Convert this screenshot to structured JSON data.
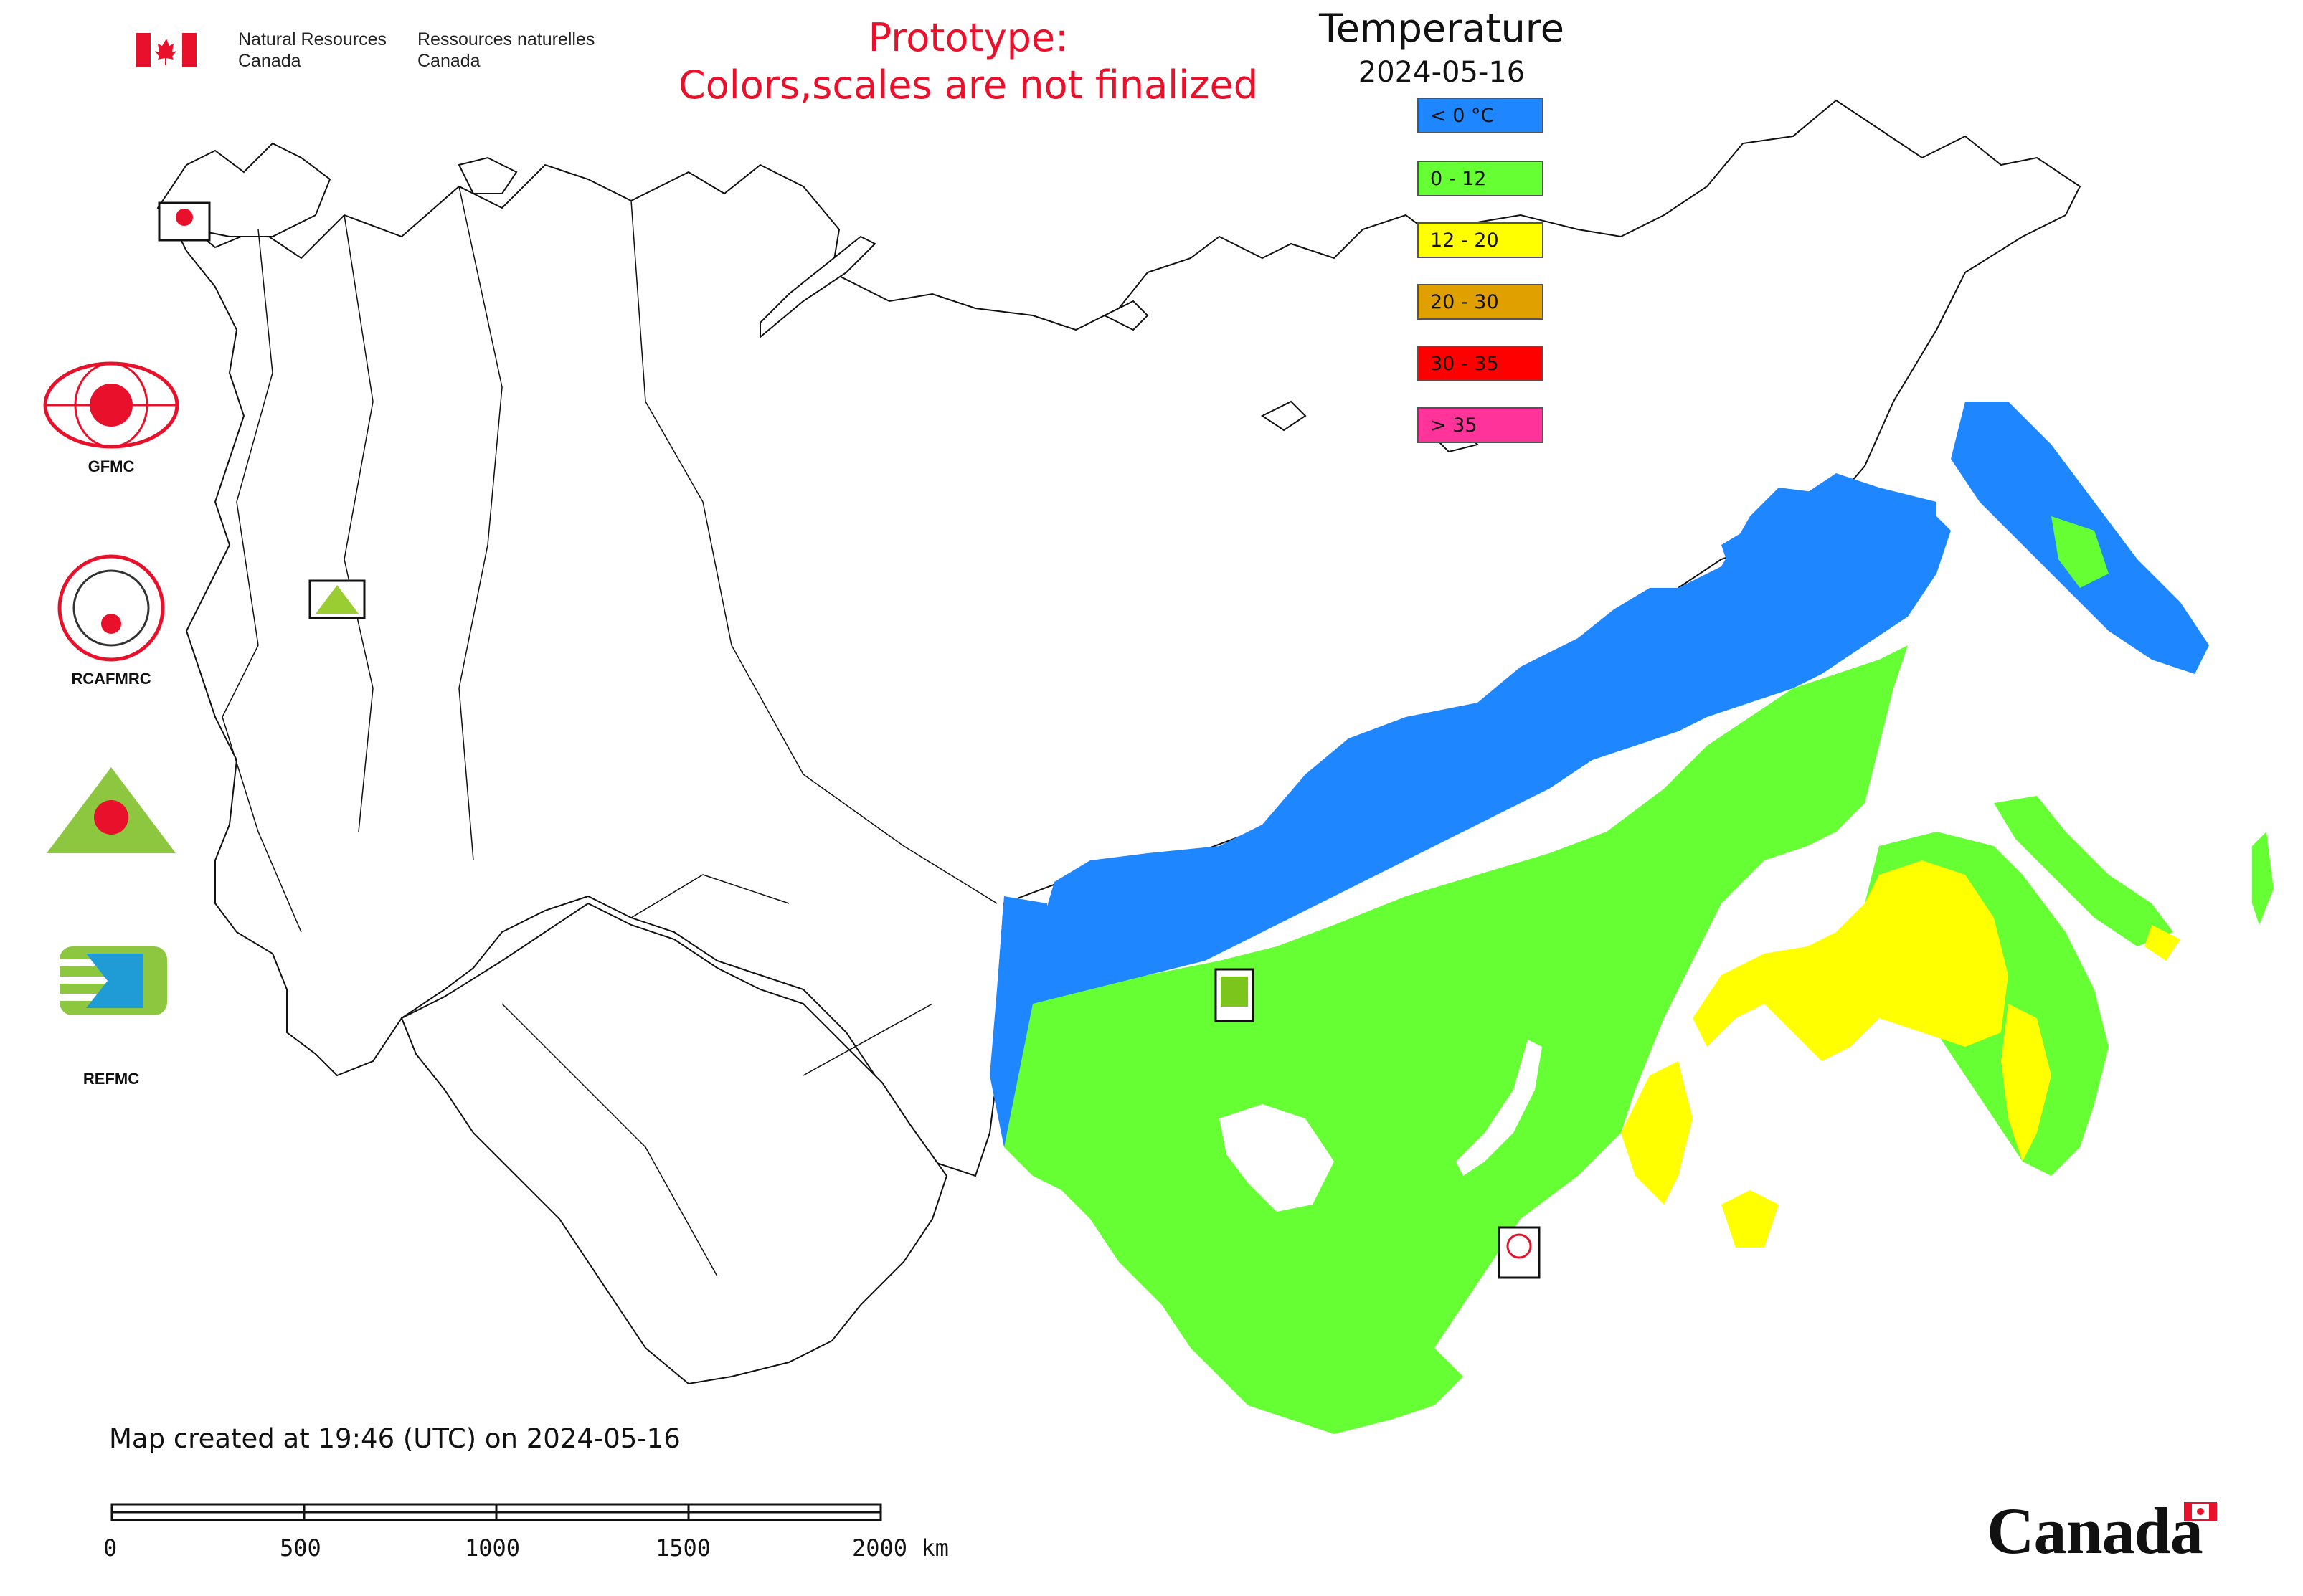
{
  "header": {
    "org_en_line1": "Natural Resources",
    "org_en_line2": "Canada",
    "org_fr_line1": "Ressources naturelles",
    "org_fr_line2": "Canada",
    "prototype_line1": "Prototype:",
    "prototype_line2": "Colors,scales are not finalized"
  },
  "legend": {
    "title": "Temperature",
    "date": "2024-05-16",
    "classes": [
      {
        "label": "< 0 °C",
        "color": "#1e86ff"
      },
      {
        "label": "0 - 12",
        "color": "#66ff33"
      },
      {
        "label": "12 - 20",
        "color": "#ffff00"
      },
      {
        "label": "20 - 30",
        "color": "#e0a000"
      },
      {
        "label": "30 - 35",
        "color": "#ff0000"
      },
      {
        "label": "> 35",
        "color": "#ff3399"
      }
    ]
  },
  "organizations": [
    {
      "label": "GFMC",
      "icon": "gfmc-logo-icon"
    },
    {
      "label": "RCAFMRC",
      "icon": "rcafmrc-logo-icon"
    },
    {
      "label": "",
      "icon": "reefmc-logo-icon"
    },
    {
      "label": "REFMC",
      "icon": "refmc-logo-icon"
    }
  ],
  "footer": {
    "created_text": "Map created at 19:46 (UTC) on 2024-05-16",
    "scale_labels": [
      "0",
      "500",
      "1000",
      "1500",
      "2000 km"
    ],
    "canada_wordmark": "Canada"
  },
  "colors": {
    "cold": "#1e86ff",
    "mild": "#66ff33",
    "warm": "#ffff00",
    "title_red": "#e8102a",
    "flag_red": "#e8102a"
  }
}
